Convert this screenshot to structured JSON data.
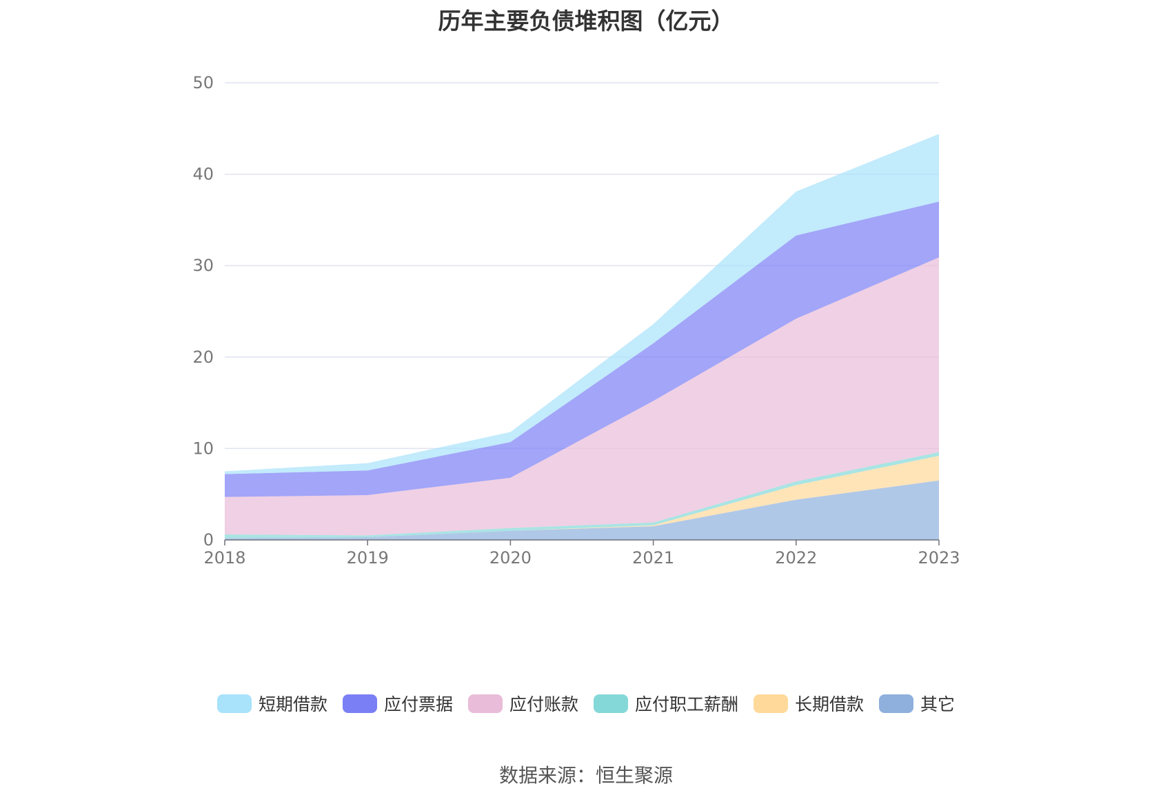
{
  "chart_data": {
    "type": "area",
    "stacked": true,
    "title": "历年主要负债堆积图（亿元）",
    "x": [
      "2018",
      "2019",
      "2020",
      "2021",
      "2022",
      "2023"
    ],
    "yticks": [
      "0",
      "10",
      "20",
      "30",
      "40",
      "50"
    ],
    "ylim": [
      0,
      50
    ],
    "grid": true,
    "legend_position": "bottom",
    "series": [
      {
        "name": "其它",
        "color": "#8fb0dd",
        "values": [
          0.2,
          0.3,
          1.0,
          1.5,
          4.4,
          6.5
        ]
      },
      {
        "name": "长期借款",
        "color": "#ffd99a",
        "values": [
          0.0,
          0.0,
          0.0,
          0.1,
          1.6,
          2.7
        ]
      },
      {
        "name": "应付职工薪酬",
        "color": "#85d8d8",
        "values": [
          0.4,
          0.2,
          0.3,
          0.3,
          0.4,
          0.4
        ]
      },
      {
        "name": "应付账款",
        "color": "#e9bcd9",
        "values": [
          4.1,
          4.4,
          5.5,
          13.3,
          17.8,
          21.3
        ]
      },
      {
        "name": "应付票据",
        "color": "#7b7ff5",
        "values": [
          2.5,
          2.7,
          3.9,
          6.3,
          9.1,
          6.1
        ]
      },
      {
        "name": "短期借款",
        "color": "#a8e2fb",
        "values": [
          0.3,
          0.8,
          1.1,
          2.1,
          4.8,
          7.4
        ]
      }
    ],
    "legend_order": [
      "短期借款",
      "应付票据",
      "应付账款",
      "应付职工薪酬",
      "长期借款",
      "其它"
    ]
  },
  "source": "数据来源：恒生聚源"
}
